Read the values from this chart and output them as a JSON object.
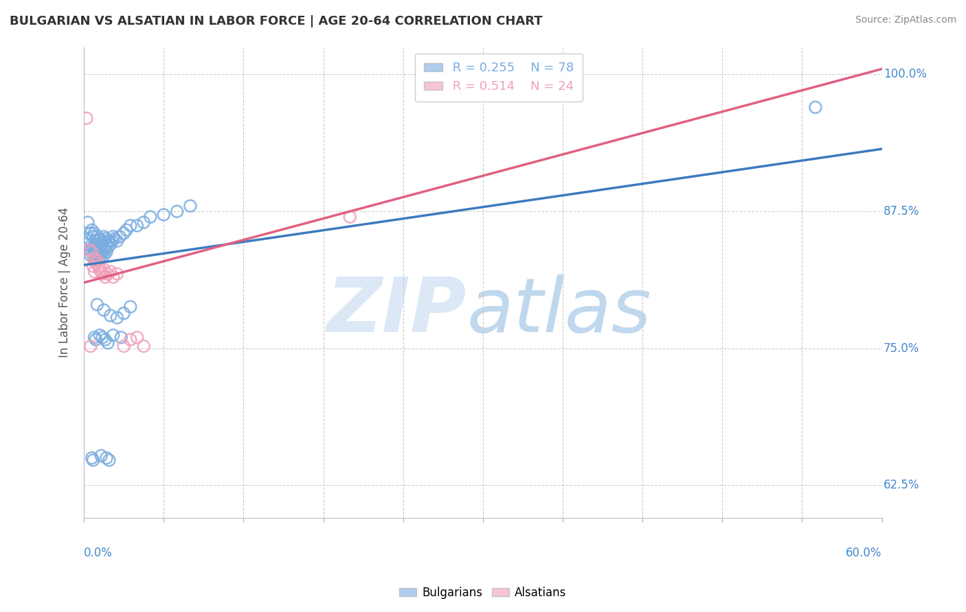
{
  "title": "BULGARIAN VS ALSATIAN IN LABOR FORCE | AGE 20-64 CORRELATION CHART",
  "source": "Source: ZipAtlas.com",
  "ylabel": "In Labor Force | Age 20-64",
  "xlim": [
    0.0,
    0.6
  ],
  "ylim": [
    0.595,
    1.025
  ],
  "y_ticks": [
    0.625,
    0.75,
    0.875,
    1.0
  ],
  "y_tick_labels": [
    "62.5%",
    "75.0%",
    "87.5%",
    "100.0%"
  ],
  "legend_r1": "R = 0.255",
  "legend_n1": "N = 78",
  "legend_r2": "R = 0.514",
  "legend_n2": "N = 24",
  "bg_color": "#ffffff",
  "blue_color": "#7aade0",
  "pink_color": "#f0a0b8",
  "blue_line_color": "#3d7abf",
  "pink_line_color": "#e06080",
  "grid_color": "#cccccc",
  "title_color": "#333333",
  "axis_label_color": "#4488cc",
  "legend_color_r1": "#7aade0",
  "legend_color_r2": "#f0a0b8",
  "blue_trend_x": [
    0.0,
    0.6
  ],
  "blue_trend_y": [
    0.826,
    0.932
  ],
  "pink_trend_x": [
    0.0,
    0.6
  ],
  "pink_trend_y": [
    0.81,
    1.005
  ],
  "blue_scatter_x": [
    0.002,
    0.003,
    0.004,
    0.005,
    0.005,
    0.005,
    0.006,
    0.006,
    0.006,
    0.007,
    0.007,
    0.007,
    0.008,
    0.008,
    0.008,
    0.009,
    0.009,
    0.009,
    0.01,
    0.01,
    0.01,
    0.01,
    0.011,
    0.011,
    0.011,
    0.012,
    0.012,
    0.012,
    0.013,
    0.013,
    0.013,
    0.014,
    0.014,
    0.015,
    0.015,
    0.015,
    0.016,
    0.016,
    0.017,
    0.017,
    0.018,
    0.018,
    0.019,
    0.02,
    0.021,
    0.022,
    0.023,
    0.025,
    0.027,
    0.03,
    0.032,
    0.035,
    0.04,
    0.045,
    0.05,
    0.06,
    0.07,
    0.08,
    0.01,
    0.015,
    0.02,
    0.025,
    0.03,
    0.035,
    0.008,
    0.009,
    0.012,
    0.014,
    0.016,
    0.018,
    0.022,
    0.028,
    0.55,
    0.006,
    0.007,
    0.013,
    0.017,
    0.019
  ],
  "blue_scatter_y": [
    0.845,
    0.865,
    0.85,
    0.835,
    0.855,
    0.84,
    0.845,
    0.858,
    0.838,
    0.842,
    0.852,
    0.835,
    0.838,
    0.845,
    0.855,
    0.84,
    0.848,
    0.832,
    0.838,
    0.845,
    0.852,
    0.835,
    0.84,
    0.848,
    0.835,
    0.842,
    0.85,
    0.838,
    0.845,
    0.835,
    0.84,
    0.848,
    0.838,
    0.842,
    0.852,
    0.835,
    0.84,
    0.85,
    0.845,
    0.838,
    0.848,
    0.842,
    0.848,
    0.845,
    0.848,
    0.852,
    0.85,
    0.848,
    0.852,
    0.855,
    0.858,
    0.862,
    0.862,
    0.865,
    0.87,
    0.872,
    0.875,
    0.88,
    0.79,
    0.785,
    0.78,
    0.778,
    0.782,
    0.788,
    0.76,
    0.758,
    0.762,
    0.76,
    0.758,
    0.755,
    0.762,
    0.76,
    0.97,
    0.65,
    0.648,
    0.652,
    0.65,
    0.648
  ],
  "pink_scatter_x": [
    0.002,
    0.004,
    0.006,
    0.007,
    0.008,
    0.008,
    0.009,
    0.01,
    0.011,
    0.012,
    0.013,
    0.014,
    0.015,
    0.016,
    0.018,
    0.02,
    0.022,
    0.025,
    0.03,
    0.035,
    0.04,
    0.045,
    0.2,
    0.005
  ],
  "pink_scatter_y": [
    0.96,
    0.84,
    0.838,
    0.825,
    0.832,
    0.82,
    0.828,
    0.83,
    0.825,
    0.822,
    0.82,
    0.818,
    0.822,
    0.815,
    0.818,
    0.82,
    0.815,
    0.818,
    0.752,
    0.758,
    0.76,
    0.752,
    0.87,
    0.752
  ]
}
